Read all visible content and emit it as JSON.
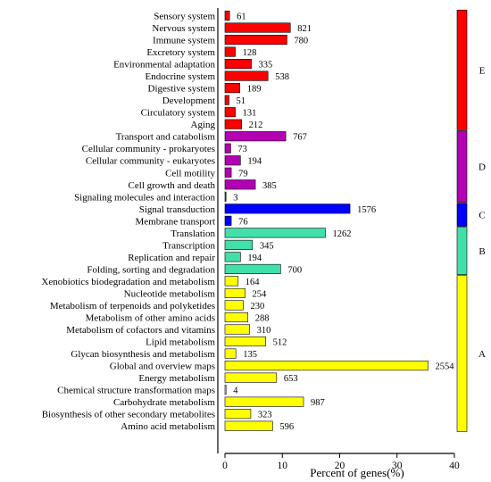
{
  "chart_data": {
    "type": "bar",
    "orientation": "horizontal",
    "xlabel": "Percent of genes(%)",
    "ylabel": "",
    "title": "",
    "xlim": [
      0,
      40
    ],
    "xticks": [
      "0",
      "10",
      "20",
      "30",
      "40"
    ],
    "grid": false,
    "legend": "none",
    "value_labels_show": "gene counts",
    "groups": [
      {
        "name": "E",
        "color": "#ff0000"
      },
      {
        "name": "D",
        "color": "#b300b3"
      },
      {
        "name": "C",
        "color": "#0000ff"
      },
      {
        "name": "B",
        "color": "#40e0a8"
      },
      {
        "name": "A",
        "color": "#ffff00"
      }
    ],
    "bars": [
      {
        "category": "Sensory system",
        "group": "E",
        "count": 61,
        "percent": 0.8
      },
      {
        "category": "Nervous system",
        "group": "E",
        "count": 821,
        "percent": 11.4
      },
      {
        "category": "Immune system",
        "group": "E",
        "count": 780,
        "percent": 10.8
      },
      {
        "category": "Excretory system",
        "group": "E",
        "count": 128,
        "percent": 1.8
      },
      {
        "category": "Environmental adaptation",
        "group": "E",
        "count": 335,
        "percent": 4.6
      },
      {
        "category": "Endocrine system",
        "group": "E",
        "count": 538,
        "percent": 7.5
      },
      {
        "category": "Digestive system",
        "group": "E",
        "count": 189,
        "percent": 2.6
      },
      {
        "category": "Development",
        "group": "E",
        "count": 51,
        "percent": 0.7
      },
      {
        "category": "Circulatory system",
        "group": "E",
        "count": 131,
        "percent": 1.8
      },
      {
        "category": "Aging",
        "group": "E",
        "count": 212,
        "percent": 2.9
      },
      {
        "category": "Transport and catabolism",
        "group": "D",
        "count": 767,
        "percent": 10.6
      },
      {
        "category": "Cellular community - prokaryotes",
        "group": "D",
        "count": 73,
        "percent": 1.0
      },
      {
        "category": "Cellular community - eukaryotes",
        "group": "D",
        "count": 194,
        "percent": 2.7
      },
      {
        "category": "Cell motility",
        "group": "D",
        "count": 79,
        "percent": 1.1
      },
      {
        "category": "Cell growth and death",
        "group": "D",
        "count": 385,
        "percent": 5.3
      },
      {
        "category": "Signaling molecules and interaction",
        "group": "D",
        "count": 3,
        "percent": 0.04
      },
      {
        "category": "Signal transduction",
        "group": "C",
        "count": 1576,
        "percent": 21.8
      },
      {
        "category": "Membrane transport",
        "group": "C",
        "count": 76,
        "percent": 1.1
      },
      {
        "category": "Translation",
        "group": "B",
        "count": 1262,
        "percent": 17.5
      },
      {
        "category": "Transcription",
        "group": "B",
        "count": 345,
        "percent": 4.8
      },
      {
        "category": "Replication and repair",
        "group": "B",
        "count": 194,
        "percent": 2.7
      },
      {
        "category": "Folding, sorting and degradation",
        "group": "B",
        "count": 700,
        "percent": 9.7
      },
      {
        "category": "Xenobiotics biodegradation and metabolism",
        "group": "A",
        "count": 164,
        "percent": 2.3
      },
      {
        "category": "Nucleotide metabolism",
        "group": "A",
        "count": 254,
        "percent": 3.5
      },
      {
        "category": "Metabolism of terpenoids and polyketides",
        "group": "A",
        "count": 230,
        "percent": 3.2
      },
      {
        "category": "Metabolism of other amino acids",
        "group": "A",
        "count": 288,
        "percent": 4.0
      },
      {
        "category": "Metabolism of cofactors and vitamins",
        "group": "A",
        "count": 310,
        "percent": 4.3
      },
      {
        "category": "Lipid metabolism",
        "group": "A",
        "count": 512,
        "percent": 7.1
      },
      {
        "category": "Glycan biosynthesis and metabolism",
        "group": "A",
        "count": 135,
        "percent": 1.9
      },
      {
        "category": "Global and overview maps",
        "group": "A",
        "count": 2554,
        "percent": 35.4
      },
      {
        "category": "Energy metabolism",
        "group": "A",
        "count": 653,
        "percent": 9.0
      },
      {
        "category": "Chemical structure transformation maps",
        "group": "A",
        "count": 4,
        "percent": 0.06
      },
      {
        "category": "Carbohydrate metabolism",
        "group": "A",
        "count": 987,
        "percent": 13.7
      },
      {
        "category": "Biosynthesis of other secondary metabolites",
        "group": "A",
        "count": 323,
        "percent": 4.5
      },
      {
        "category": "Amino acid metabolism",
        "group": "A",
        "count": 596,
        "percent": 8.3
      }
    ]
  }
}
